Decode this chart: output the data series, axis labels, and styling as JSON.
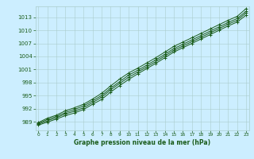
{
  "title": "Graphe pression niveau de la mer (hPa)",
  "xlabel_ticks": [
    0,
    1,
    2,
    3,
    4,
    5,
    6,
    7,
    8,
    9,
    10,
    11,
    12,
    13,
    14,
    15,
    16,
    17,
    18,
    19,
    20,
    21,
    22,
    23
  ],
  "yticks": [
    989,
    992,
    995,
    998,
    1001,
    1004,
    1007,
    1010,
    1013
  ],
  "ylim": [
    987.0,
    1015.5
  ],
  "xlim": [
    -0.3,
    23.3
  ],
  "background_color": "#cceeff",
  "grid_color": "#aacccc",
  "line_color": "#1a5c1a",
  "marker_color": "#1a5c1a",
  "title_color": "#1a5c1a",
  "tick_color": "#1a5c1a",
  "lines": [
    [
      988.8,
      989.8,
      990.5,
      991.5,
      992.2,
      993.0,
      994.2,
      995.5,
      997.2,
      998.8,
      1000.2,
      1001.3,
      1002.5,
      1003.7,
      1005.0,
      1006.3,
      1007.3,
      1008.3,
      1009.3,
      1010.3,
      1011.3,
      1012.3,
      1013.2,
      1015.0
    ],
    [
      988.6,
      989.5,
      990.2,
      991.1,
      991.8,
      992.6,
      993.8,
      995.0,
      996.7,
      998.2,
      999.7,
      1000.8,
      1002.0,
      1003.2,
      1004.5,
      1005.8,
      1006.8,
      1007.8,
      1008.8,
      1009.8,
      1010.8,
      1011.8,
      1012.7,
      1014.4
    ],
    [
      988.4,
      989.2,
      989.9,
      990.8,
      991.4,
      992.2,
      993.4,
      994.6,
      996.3,
      997.8,
      999.2,
      1000.4,
      1001.6,
      1002.8,
      1004.1,
      1005.4,
      1006.4,
      1007.4,
      1008.4,
      1009.4,
      1010.4,
      1011.4,
      1012.3,
      1014.0
    ],
    [
      988.2,
      988.9,
      989.6,
      990.4,
      991.0,
      991.8,
      993.0,
      994.1,
      995.8,
      997.3,
      998.7,
      1000.0,
      1001.2,
      1002.4,
      1003.7,
      1005.0,
      1006.0,
      1007.0,
      1008.0,
      1009.0,
      1010.0,
      1011.0,
      1011.9,
      1013.5
    ]
  ]
}
